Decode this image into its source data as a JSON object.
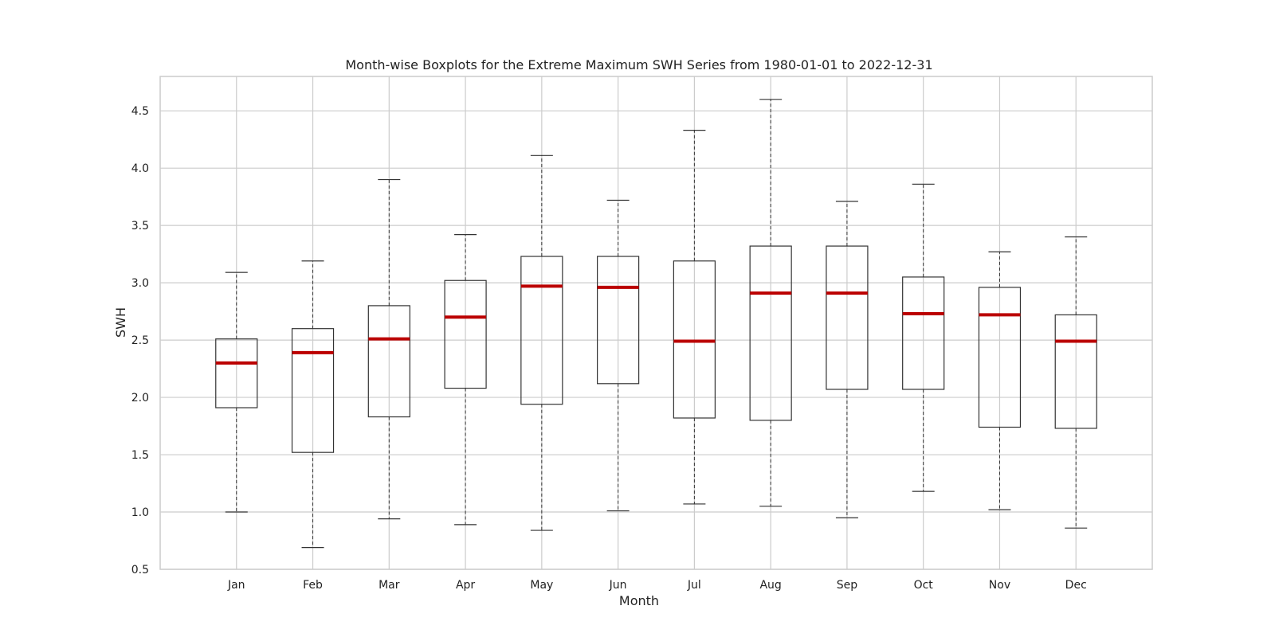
{
  "chart_data": {
    "type": "boxplot",
    "title": "Month-wise Boxplots for the Extreme Maximum SWH Series from 1980-01-01 to 2022-12-31",
    "xlabel": "Month",
    "ylabel": "SWH",
    "ylim": [
      0.5,
      4.8
    ],
    "yticks": [
      "0.5",
      "1.0",
      "1.5",
      "2.0",
      "2.5",
      "3.0",
      "3.5",
      "4.0",
      "4.5"
    ],
    "grid": true,
    "categories": [
      "Jan",
      "Feb",
      "Mar",
      "Apr",
      "May",
      "Jun",
      "Jul",
      "Aug",
      "Sep",
      "Oct",
      "Nov",
      "Dec"
    ],
    "boxes": [
      {
        "whislo": 1.0,
        "q1": 1.91,
        "med": 2.3,
        "q3": 2.51,
        "whishi": 3.09
      },
      {
        "whislo": 0.69,
        "q1": 1.52,
        "med": 2.39,
        "q3": 2.6,
        "whishi": 3.19
      },
      {
        "whislo": 0.94,
        "q1": 1.83,
        "med": 2.51,
        "q3": 2.8,
        "whishi": 3.9
      },
      {
        "whislo": 0.89,
        "q1": 2.08,
        "med": 2.7,
        "q3": 3.02,
        "whishi": 3.42
      },
      {
        "whislo": 0.84,
        "q1": 1.94,
        "med": 2.97,
        "q3": 3.23,
        "whishi": 4.11
      },
      {
        "whislo": 1.01,
        "q1": 2.12,
        "med": 2.96,
        "q3": 3.23,
        "whishi": 3.72
      },
      {
        "whislo": 1.07,
        "q1": 1.82,
        "med": 2.49,
        "q3": 3.19,
        "whishi": 4.33
      },
      {
        "whislo": 1.05,
        "q1": 1.8,
        "med": 2.91,
        "q3": 3.32,
        "whishi": 4.6
      },
      {
        "whislo": 0.95,
        "q1": 2.07,
        "med": 2.91,
        "q3": 3.32,
        "whishi": 3.71
      },
      {
        "whislo": 1.18,
        "q1": 2.07,
        "med": 2.73,
        "q3": 3.05,
        "whishi": 3.86
      },
      {
        "whislo": 1.02,
        "q1": 1.74,
        "med": 2.72,
        "q3": 2.96,
        "whishi": 3.27
      },
      {
        "whislo": 0.86,
        "q1": 1.73,
        "med": 2.49,
        "q3": 2.72,
        "whishi": 3.4
      }
    ],
    "colors": {
      "box": "#333333",
      "median": "#bb0000",
      "whisker": "#333333",
      "grid": "#cccccc",
      "spine": "#cccccc"
    }
  }
}
